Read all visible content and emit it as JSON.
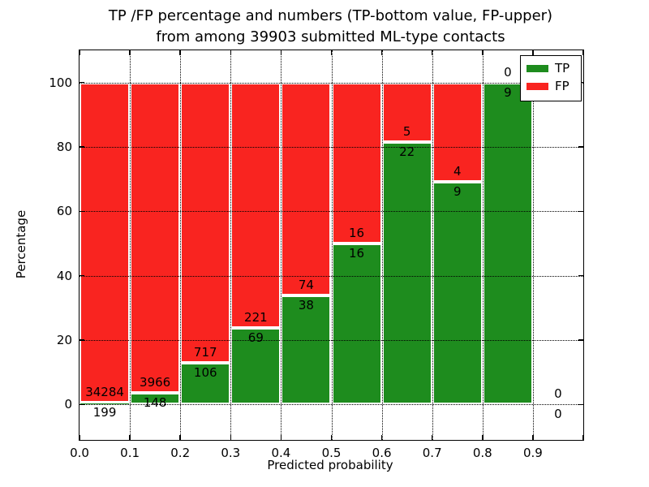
{
  "figure": {
    "title_line1": "TP /FP percentage and numbers (TP-bottom value, FP-upper)",
    "title_line2": "from among 39903 submitted ML-type contacts"
  },
  "chart_data": {
    "type": "bar",
    "stacked": true,
    "normalized_to_percent": true,
    "title": "TP /FP percentage and numbers (TP-bottom value, FP-upper) from among 39903 submitted ML-type contacts",
    "xlabel": "Predicted probability",
    "ylabel": "Percentage",
    "xlim": [
      0.0,
      1.0
    ],
    "ylim": [
      -11,
      110
    ],
    "xticks": [
      "0.0",
      "0.1",
      "0.2",
      "0.3",
      "0.4",
      "0.5",
      "0.6",
      "0.7",
      "0.8",
      "0.9"
    ],
    "yticks": [
      0,
      20,
      40,
      60,
      80,
      100
    ],
    "grid": true,
    "grid_style": "dotted-black-above-bars",
    "total_contacts": 39903,
    "bin_edges": [
      0.0,
      0.1,
      0.2,
      0.3,
      0.4,
      0.5,
      0.6,
      0.7,
      0.8,
      0.9,
      1.0
    ],
    "categories": [
      "0.0-0.1",
      "0.1-0.2",
      "0.2-0.3",
      "0.3-0.4",
      "0.4-0.5",
      "0.5-0.6",
      "0.6-0.7",
      "0.7-0.8",
      "0.8-0.9",
      "0.9-1.0"
    ],
    "series": [
      {
        "name": "TP",
        "color": "#1e8c1e",
        "counts": [
          199,
          148,
          106,
          69,
          38,
          16,
          22,
          9,
          9,
          0
        ]
      },
      {
        "name": "FP",
        "color": "#f92420",
        "counts": [
          34284,
          3966,
          717,
          221,
          74,
          16,
          5,
          4,
          0,
          0
        ]
      }
    ],
    "legend": {
      "position": "upper right",
      "entries": [
        {
          "label": "TP",
          "color": "#1e8c1e"
        },
        {
          "label": "FP",
          "color": "#f92420"
        }
      ]
    },
    "bar_edge_color": "#ffffff",
    "annotation_note": "FP count printed above TP/FP boundary, TP count printed below it"
  }
}
